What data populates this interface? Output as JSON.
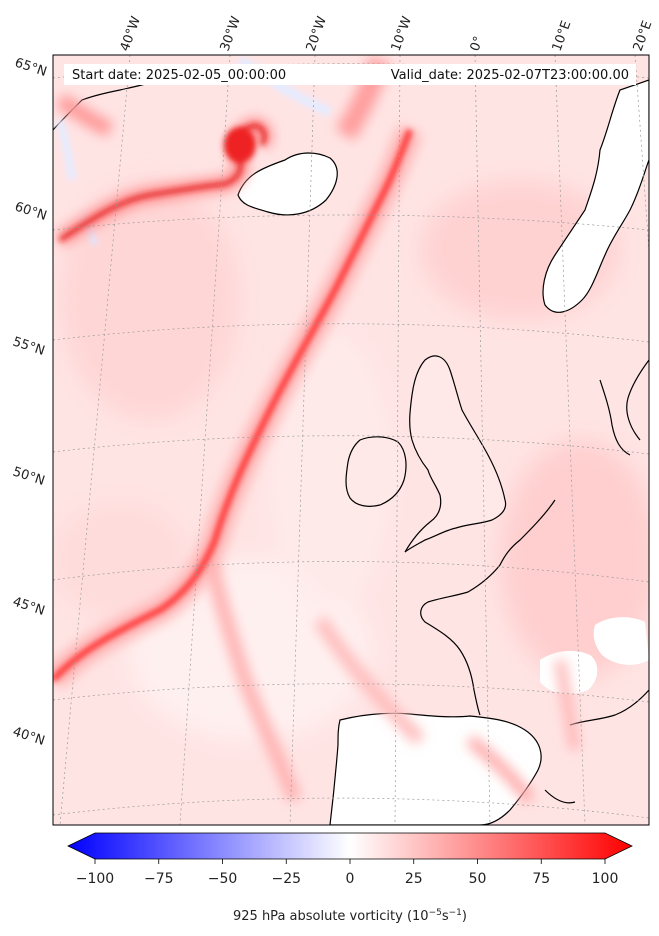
{
  "header": {
    "start_date": "Start date: 2025-02-05_00:00:00",
    "valid_date": "Valid_date: 2025-02-07T23:00:00.00"
  },
  "map": {
    "field": "925 hPa absolute vorticity",
    "lon_labels": [
      "40°W",
      "30°W",
      "20°W",
      "10°W",
      "0°",
      "10°E",
      "20°E"
    ],
    "lat_labels": [
      "65°N",
      "60°N",
      "55°N",
      "50°N",
      "45°N",
      "40°N"
    ],
    "colors": {
      "max": "#ff0000",
      "min": "#0000ff",
      "mid": "#ffffff",
      "land_line": "#000000"
    }
  },
  "colorbar": {
    "ticks": [
      "−100",
      "−75",
      "−50",
      "−25",
      "0",
      "25",
      "50",
      "75",
      "100"
    ],
    "range": [
      -100,
      100
    ],
    "label_prefix": "925 hPa absolute vorticity (10",
    "label_exp1": "−5",
    "label_mid": "s",
    "label_exp2": "−1",
    "label_suffix": ")"
  }
}
